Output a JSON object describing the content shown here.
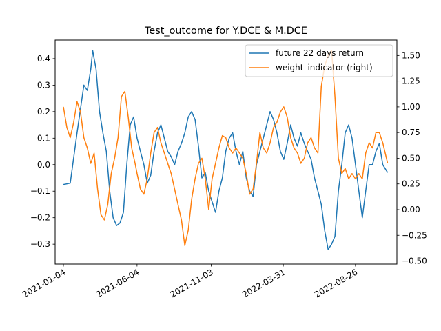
{
  "chart_data": {
    "type": "line",
    "title": "Test_outcome for Y.DCE & M.DCE",
    "xlabel": "",
    "ylabel": "",
    "ylabel_right": "",
    "x_tick_labels": [
      "2021-01-04",
      "2021-06-04",
      "2021-11-03",
      "2022-03-31",
      "2022-08-26"
    ],
    "x_range": [
      "2020-12-18",
      "2022-11-19"
    ],
    "y_left": {
      "ylim": [
        -0.375,
        0.47
      ],
      "ticks": [
        -0.3,
        -0.2,
        -0.1,
        0.0,
        0.1,
        0.2,
        0.3,
        0.4
      ]
    },
    "y_right": {
      "ylim": [
        -0.53,
        1.65
      ],
      "ticks": [
        -0.5,
        -0.25,
        0.0,
        0.25,
        0.5,
        0.75,
        1.0,
        1.25,
        1.5
      ]
    },
    "grid": false,
    "legend_position": "upper right",
    "series": [
      {
        "name": "future 22 days return",
        "axis": "left",
        "color": "#1f77b4",
        "points": [
          [
            "2021-01-04",
            -0.075
          ],
          [
            "2021-01-18",
            -0.07
          ],
          [
            "2021-02-01",
            0.12
          ],
          [
            "2021-02-15",
            0.3
          ],
          [
            "2021-02-22",
            0.28
          ],
          [
            "2021-03-01",
            0.36
          ],
          [
            "2021-03-05",
            0.43
          ],
          [
            "2021-03-12",
            0.36
          ],
          [
            "2021-03-19",
            0.2
          ],
          [
            "2021-03-26",
            0.12
          ],
          [
            "2021-04-02",
            0.05
          ],
          [
            "2021-04-09",
            -0.1
          ],
          [
            "2021-04-16",
            -0.2
          ],
          [
            "2021-04-23",
            -0.23
          ],
          [
            "2021-04-30",
            -0.22
          ],
          [
            "2021-05-07",
            -0.18
          ],
          [
            "2021-05-14",
            0.0
          ],
          [
            "2021-05-21",
            0.15
          ],
          [
            "2021-05-28",
            0.18
          ],
          [
            "2021-06-04",
            0.1
          ],
          [
            "2021-06-11",
            0.05
          ],
          [
            "2021-06-18",
            0.0
          ],
          [
            "2021-06-25",
            -0.07
          ],
          [
            "2021-07-02",
            -0.04
          ],
          [
            "2021-07-09",
            0.05
          ],
          [
            "2021-07-16",
            0.12
          ],
          [
            "2021-07-23",
            0.15
          ],
          [
            "2021-07-30",
            0.1
          ],
          [
            "2021-08-06",
            0.05
          ],
          [
            "2021-08-13",
            0.03
          ],
          [
            "2021-08-20",
            0.0
          ],
          [
            "2021-08-27",
            0.05
          ],
          [
            "2021-09-03",
            0.08
          ],
          [
            "2021-09-10",
            0.12
          ],
          [
            "2021-09-17",
            0.18
          ],
          [
            "2021-09-24",
            0.2
          ],
          [
            "2021-10-01",
            0.17
          ],
          [
            "2021-10-08",
            0.07
          ],
          [
            "2021-10-15",
            -0.05
          ],
          [
            "2021-10-22",
            -0.03
          ],
          [
            "2021-10-29",
            -0.1
          ],
          [
            "2021-11-05",
            -0.14
          ],
          [
            "2021-11-12",
            -0.18
          ],
          [
            "2021-11-19",
            -0.1
          ],
          [
            "2021-11-26",
            -0.05
          ],
          [
            "2021-12-03",
            0.05
          ],
          [
            "2021-12-10",
            0.1
          ],
          [
            "2021-12-17",
            0.12
          ],
          [
            "2021-12-24",
            0.05
          ],
          [
            "2021-12-31",
            0.0
          ],
          [
            "2022-01-07",
            0.05
          ],
          [
            "2022-01-14",
            -0.05
          ],
          [
            "2022-01-21",
            -0.1
          ],
          [
            "2022-01-28",
            -0.12
          ],
          [
            "2022-02-04",
            0.0
          ],
          [
            "2022-02-11",
            0.05
          ],
          [
            "2022-02-18",
            0.1
          ],
          [
            "2022-02-25",
            0.15
          ],
          [
            "2022-03-04",
            0.2
          ],
          [
            "2022-03-11",
            0.17
          ],
          [
            "2022-03-18",
            0.12
          ],
          [
            "2022-03-25",
            0.05
          ],
          [
            "2022-04-01",
            0.02
          ],
          [
            "2022-04-08",
            0.08
          ],
          [
            "2022-04-15",
            0.15
          ],
          [
            "2022-04-22",
            0.1
          ],
          [
            "2022-04-29",
            0.07
          ],
          [
            "2022-05-06",
            0.12
          ],
          [
            "2022-05-13",
            0.08
          ],
          [
            "2022-05-20",
            0.05
          ],
          [
            "2022-05-27",
            0.02
          ],
          [
            "2022-06-03",
            -0.05
          ],
          [
            "2022-06-10",
            -0.1
          ],
          [
            "2022-06-17",
            -0.15
          ],
          [
            "2022-06-24",
            -0.25
          ],
          [
            "2022-07-01",
            -0.32
          ],
          [
            "2022-07-08",
            -0.3
          ],
          [
            "2022-07-15",
            -0.27
          ],
          [
            "2022-07-22",
            -0.1
          ],
          [
            "2022-07-29",
            0.0
          ],
          [
            "2022-08-05",
            0.12
          ],
          [
            "2022-08-12",
            0.15
          ],
          [
            "2022-08-19",
            0.1
          ],
          [
            "2022-08-26",
            0.0
          ],
          [
            "2022-09-02",
            -0.1
          ],
          [
            "2022-09-09",
            -0.2
          ],
          [
            "2022-09-16",
            -0.1
          ],
          [
            "2022-09-23",
            0.0
          ],
          [
            "2022-09-30",
            0.0
          ],
          [
            "2022-10-07",
            0.05
          ],
          [
            "2022-10-14",
            0.08
          ],
          [
            "2022-10-21",
            0.0
          ],
          [
            "2022-10-31",
            -0.03
          ]
        ]
      },
      {
        "name": "weight_indicator (right)",
        "axis": "right",
        "color": "#ff7f0e",
        "points": [
          [
            "2021-01-04",
            1.0
          ],
          [
            "2021-01-11",
            0.8
          ],
          [
            "2021-01-18",
            0.7
          ],
          [
            "2021-01-25",
            0.85
          ],
          [
            "2021-02-01",
            1.05
          ],
          [
            "2021-02-08",
            0.95
          ],
          [
            "2021-02-15",
            0.7
          ],
          [
            "2021-02-22",
            0.6
          ],
          [
            "2021-03-01",
            0.45
          ],
          [
            "2021-03-08",
            0.55
          ],
          [
            "2021-03-15",
            0.2
          ],
          [
            "2021-03-22",
            -0.05
          ],
          [
            "2021-03-29",
            -0.1
          ],
          [
            "2021-04-05",
            0.05
          ],
          [
            "2021-04-12",
            0.35
          ],
          [
            "2021-04-19",
            0.5
          ],
          [
            "2021-04-26",
            0.7
          ],
          [
            "2021-05-03",
            1.1
          ],
          [
            "2021-05-10",
            1.15
          ],
          [
            "2021-05-17",
            0.9
          ],
          [
            "2021-05-24",
            0.6
          ],
          [
            "2021-05-31",
            0.45
          ],
          [
            "2021-06-04",
            0.35
          ],
          [
            "2021-06-11",
            0.2
          ],
          [
            "2021-06-18",
            0.15
          ],
          [
            "2021-06-25",
            0.3
          ],
          [
            "2021-07-02",
            0.55
          ],
          [
            "2021-07-09",
            0.75
          ],
          [
            "2021-07-16",
            0.8
          ],
          [
            "2021-07-23",
            0.65
          ],
          [
            "2021-07-30",
            0.55
          ],
          [
            "2021-08-06",
            0.45
          ],
          [
            "2021-08-13",
            0.35
          ],
          [
            "2021-08-20",
            0.2
          ],
          [
            "2021-08-27",
            0.05
          ],
          [
            "2021-09-03",
            -0.1
          ],
          [
            "2021-09-10",
            -0.35
          ],
          [
            "2021-09-17",
            -0.2
          ],
          [
            "2021-09-24",
            0.1
          ],
          [
            "2021-10-01",
            0.3
          ],
          [
            "2021-10-08",
            0.45
          ],
          [
            "2021-10-15",
            0.5
          ],
          [
            "2021-10-22",
            0.3
          ],
          [
            "2021-10-29",
            0.0
          ],
          [
            "2021-11-05",
            0.3
          ],
          [
            "2021-11-12",
            0.45
          ],
          [
            "2021-11-19",
            0.6
          ],
          [
            "2021-11-26",
            0.72
          ],
          [
            "2021-12-03",
            0.7
          ],
          [
            "2021-12-10",
            0.6
          ],
          [
            "2021-12-17",
            0.55
          ],
          [
            "2021-12-24",
            0.6
          ],
          [
            "2021-12-31",
            0.55
          ],
          [
            "2022-01-07",
            0.5
          ],
          [
            "2022-01-14",
            0.35
          ],
          [
            "2022-01-21",
            0.15
          ],
          [
            "2022-01-28",
            0.2
          ],
          [
            "2022-02-04",
            0.45
          ],
          [
            "2022-02-11",
            0.75
          ],
          [
            "2022-02-18",
            0.6
          ],
          [
            "2022-02-25",
            0.55
          ],
          [
            "2022-03-04",
            0.65
          ],
          [
            "2022-03-11",
            0.8
          ],
          [
            "2022-03-18",
            0.85
          ],
          [
            "2022-03-25",
            0.95
          ],
          [
            "2022-04-01",
            1.0
          ],
          [
            "2022-04-08",
            0.9
          ],
          [
            "2022-04-15",
            0.7
          ],
          [
            "2022-04-22",
            0.6
          ],
          [
            "2022-04-29",
            0.55
          ],
          [
            "2022-05-06",
            0.45
          ],
          [
            "2022-05-13",
            0.5
          ],
          [
            "2022-05-20",
            0.65
          ],
          [
            "2022-05-27",
            0.7
          ],
          [
            "2022-06-03",
            0.6
          ],
          [
            "2022-06-10",
            0.55
          ],
          [
            "2022-06-17",
            1.2
          ],
          [
            "2022-06-24",
            1.4
          ],
          [
            "2022-07-01",
            1.5
          ],
          [
            "2022-07-08",
            1.55
          ],
          [
            "2022-07-15",
            1.1
          ],
          [
            "2022-07-22",
            0.5
          ],
          [
            "2022-07-29",
            0.35
          ],
          [
            "2022-08-05",
            0.4
          ],
          [
            "2022-08-12",
            0.3
          ],
          [
            "2022-08-19",
            0.35
          ],
          [
            "2022-08-26",
            0.3
          ],
          [
            "2022-09-02",
            0.35
          ],
          [
            "2022-09-09",
            0.3
          ],
          [
            "2022-09-16",
            0.55
          ],
          [
            "2022-09-23",
            0.65
          ],
          [
            "2022-09-30",
            0.6
          ],
          [
            "2022-10-07",
            0.75
          ],
          [
            "2022-10-14",
            0.75
          ],
          [
            "2022-10-21",
            0.65
          ],
          [
            "2022-10-31",
            0.45
          ]
        ]
      }
    ]
  }
}
